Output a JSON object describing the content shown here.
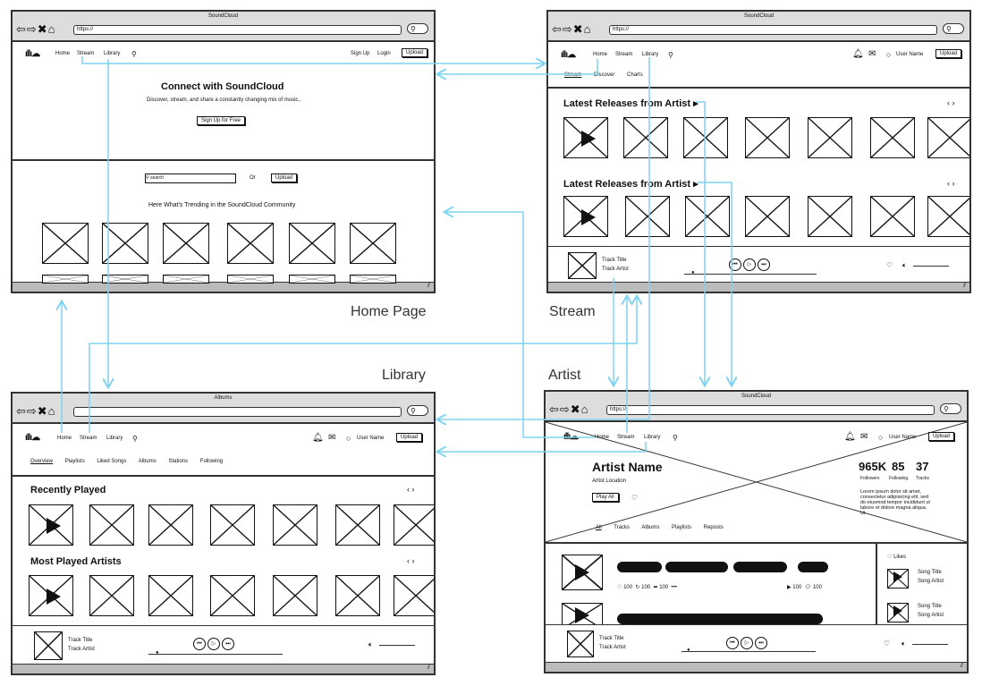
{
  "labels": {
    "home": "Home Page",
    "stream": "Stream",
    "library": "Library",
    "artist": "Artist"
  },
  "common": {
    "url": "https://",
    "nav_home": "Home",
    "nav_stream": "Stream",
    "nav_library": "Library",
    "upload": "Upload",
    "user_name": "User Name",
    "track_title": "Track Title",
    "track_artist": "Track Artist"
  },
  "home": {
    "window_title": "SoundCloud",
    "signup": "Sign Up",
    "login": "Login",
    "hero_title": "Connect with SoundCloud",
    "hero_sub": "Discover, stream, and share a constantly changing mix of music..",
    "cta": "Sign Up for Free",
    "search_placeholder": "search",
    "or": "Or",
    "trending": "Here What's Trending in the SoundCloud Community"
  },
  "stream": {
    "window_title": "SoundCloud",
    "tabs": [
      "Stream",
      "Discover",
      "Charts"
    ],
    "section1": "Latest Releases from Artist",
    "section2": "Latest Releases from Artist"
  },
  "library": {
    "window_title": "Albums",
    "tabs": [
      "Overview",
      "Playlists",
      "Liked Songs",
      "Albums",
      "Stations",
      "Following"
    ],
    "section1": "Recently Played",
    "section2": "Most Played Artists"
  },
  "artist": {
    "window_title": "SoundCloud",
    "name": "Artist Name",
    "location": "Artist Location",
    "play_all": "Play All",
    "followers_val": "965K",
    "following_val": "85",
    "tracks_val": "37",
    "followers": "Followers",
    "following": "Following",
    "tracks": "Tracks",
    "bio": "Lorem ipsum dolor sit amet, consectetur adipisicing elit, sed do eiusmod tempor incididunt ut labore et dolore magna aliqua. Ut",
    "tabs": [
      "All",
      "Tracks",
      "Albums",
      "Playlists",
      "Reposts"
    ],
    "likes": "Likes",
    "song_title": "Song Title",
    "song_artist": "Song Artist",
    "stat_likes": "100",
    "stat_reposts": "100",
    "stat_shares": "100",
    "stat_plays": "100",
    "stat_comments": "100",
    "more": "•••"
  },
  "colors": {
    "connector": "#7fd3f2",
    "frame": "#333333"
  }
}
